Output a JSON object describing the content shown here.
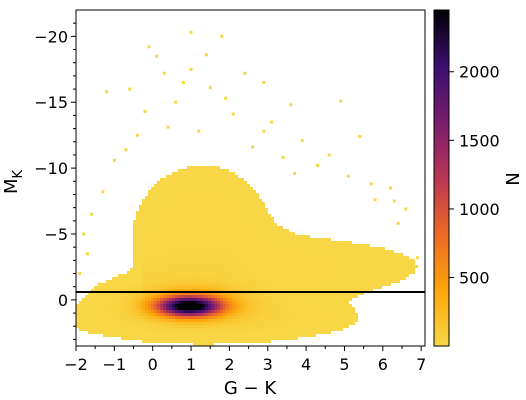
{
  "chart_data": {
    "type": "heatmap",
    "title": "",
    "xlabel": "G − K",
    "ylabel": "M",
    "ylabel_subscript": "K",
    "xlim": [
      -2,
      7.1
    ],
    "ylim": [
      -22,
      3.5
    ],
    "y_inverted": true,
    "x_ticks": [
      -2,
      -1,
      0,
      1,
      2,
      3,
      4,
      5,
      6,
      7
    ],
    "x_tick_labels": [
      "−2",
      "−1",
      "0",
      "1",
      "2",
      "3",
      "4",
      "5",
      "6",
      "7"
    ],
    "y_ticks": [
      -20,
      -15,
      -10,
      -5,
      0
    ],
    "y_tick_labels": [
      "−20",
      "−15",
      "−10",
      "−5",
      "0"
    ],
    "reference_line": {
      "orientation": "horizontal",
      "y": -0.6,
      "color": "#000000"
    },
    "colorbar": {
      "label": "N",
      "min": 1,
      "max": 2450,
      "ticks": [
        500,
        1000,
        1500,
        2000
      ],
      "tick_labels": [
        "500",
        "1000",
        "1500",
        "2000"
      ],
      "colormap": "inferno_r",
      "stops": [
        "#f8d746",
        "#fca50a",
        "#ed6925",
        "#ba3655",
        "#781c6d",
        "#3b0f70",
        "#000004"
      ]
    },
    "density_model": {
      "core": {
        "x": 0.95,
        "y": 0.5,
        "sx": 0.55,
        "sy": 0.5,
        "peak": 2400
      },
      "halo": {
        "x": 1.1,
        "y": 0.2,
        "sx": 0.85,
        "sy": 0.8,
        "peak": 450
      },
      "giant_branch": {
        "x_start": 0.2,
        "x_end": 6.5,
        "y_start": -1.5,
        "y_end": -2.5,
        "width": 1.5,
        "peak": 30
      },
      "bright_plume": {
        "x": 1.3,
        "y": -4.5,
        "sx": 0.9,
        "sy": 2.8,
        "peak": 12
      },
      "main_sequence": {
        "x": 1.5,
        "y": 1.4,
        "sx": 1.4,
        "sy": 0.7,
        "peak": 60
      }
    },
    "outlier_points": [
      [
        1.0,
        -20.3
      ],
      [
        1.8,
        -20.0
      ],
      [
        -0.1,
        -19.2
      ],
      [
        0.1,
        -18.5
      ],
      [
        1.4,
        -18.6
      ],
      [
        1.0,
        -17.5
      ],
      [
        2.4,
        -17.2
      ],
      [
        -0.6,
        -16.0
      ],
      [
        -1.2,
        -15.8
      ],
      [
        -0.2,
        -14.3
      ],
      [
        0.6,
        -15.0
      ],
      [
        2.9,
        -16.5
      ],
      [
        3.6,
        -14.8
      ],
      [
        4.9,
        -15.1
      ],
      [
        3.1,
        -13.5
      ],
      [
        5.4,
        -12.4
      ],
      [
        4.6,
        -11.0
      ],
      [
        6.2,
        -8.5
      ],
      [
        6.3,
        -7.5
      ],
      [
        6.6,
        -6.9
      ],
      [
        6.9,
        -3.2
      ],
      [
        -1.6,
        -6.5
      ],
      [
        -1.8,
        -5.0
      ],
      [
        -1.7,
        -3.5
      ],
      [
        -1.9,
        -2.0
      ],
      [
        -1.6,
        0.7
      ],
      [
        2.6,
        -11.6
      ],
      [
        1.2,
        -12.8
      ],
      [
        0.4,
        -13.1
      ],
      [
        2.1,
        -14.1
      ],
      [
        -0.7,
        -11.4
      ],
      [
        3.9,
        -12.1
      ],
      [
        4.3,
        -10.2
      ],
      [
        5.1,
        -9.4
      ],
      [
        -1.3,
        -8.2
      ],
      [
        -1.0,
        -10.6
      ],
      [
        0.8,
        -16.5
      ],
      [
        1.5,
        -16.1
      ],
      [
        0.3,
        -17.2
      ],
      [
        2.9,
        -12.8
      ],
      [
        3.4,
        -10.8
      ],
      [
        5.8,
        -7.6
      ],
      [
        6.4,
        -5.8
      ],
      [
        6.0,
        -3.9
      ],
      [
        -1.4,
        -1.2
      ],
      [
        -1.1,
        1.6
      ],
      [
        5.7,
        -8.8
      ],
      [
        3.7,
        -9.6
      ],
      [
        -0.4,
        -12.5
      ],
      [
        1.9,
        -15.3
      ]
    ]
  }
}
